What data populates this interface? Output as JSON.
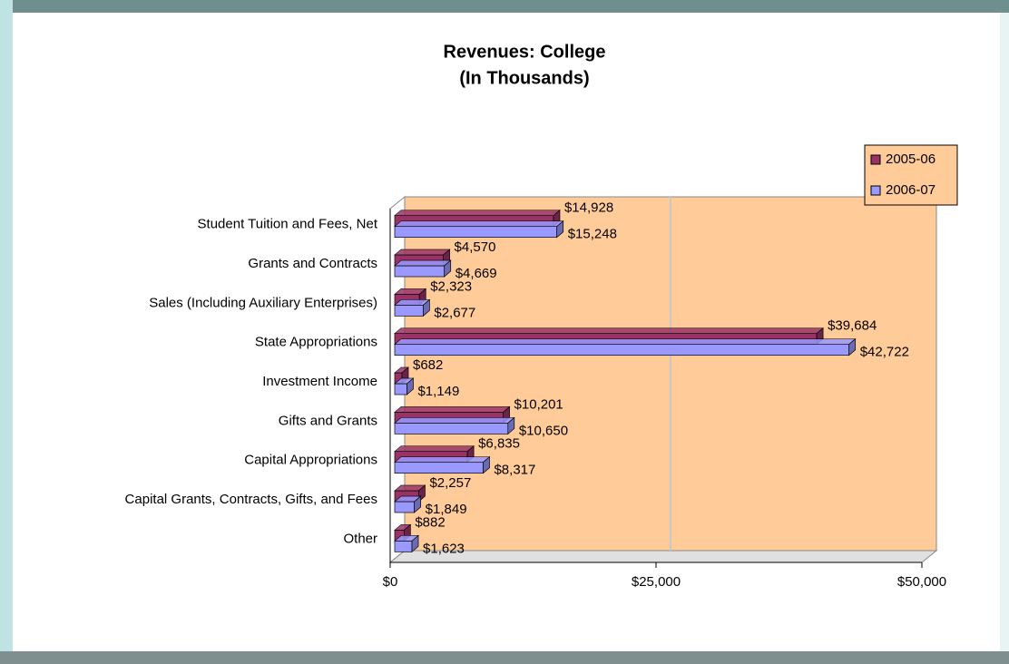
{
  "chart_data": {
    "type": "bar3d_horizontal",
    "title": "Revenues:  College",
    "subtitle": "(In Thousands)",
    "categories": [
      "Student Tuition and Fees, Net",
      "Grants and Contracts",
      "Sales (Including Auxiliary Enterprises)",
      "State Appropriations",
      "Investment Income",
      "Gifts and Grants",
      "Capital Appropriations",
      "Capital Grants, Contracts, Gifts, and Fees",
      "Other"
    ],
    "series": [
      {
        "name": "2005-06",
        "color": "#993366",
        "values": [
          14928,
          4570,
          2323,
          39684,
          682,
          10201,
          6835,
          2257,
          882
        ],
        "value_labels": [
          "$14,928",
          "$4,570",
          "$2,323",
          "$39,684",
          "$682",
          "$10,201",
          "$6,835",
          "$2,257",
          "$882"
        ]
      },
      {
        "name": "2006-07",
        "color": "#9999ff",
        "values": [
          15248,
          4669,
          2677,
          42722,
          1149,
          10650,
          8317,
          1849,
          1623
        ],
        "value_labels": [
          "$15,248",
          "$4,669",
          "$2,677",
          "$42,722",
          "$1,149",
          "$10,650",
          "$8,317",
          "$1,849",
          "$1,623"
        ]
      }
    ],
    "xlim": [
      0,
      50000
    ],
    "xticks": [
      {
        "value": 0,
        "label": "$0"
      },
      {
        "value": 25000,
        "label": "$25,000"
      },
      {
        "value": 50000,
        "label": "$50,000"
      }
    ],
    "grid": true,
    "legend": "upper right",
    "wall_color": "#ffcc99"
  }
}
